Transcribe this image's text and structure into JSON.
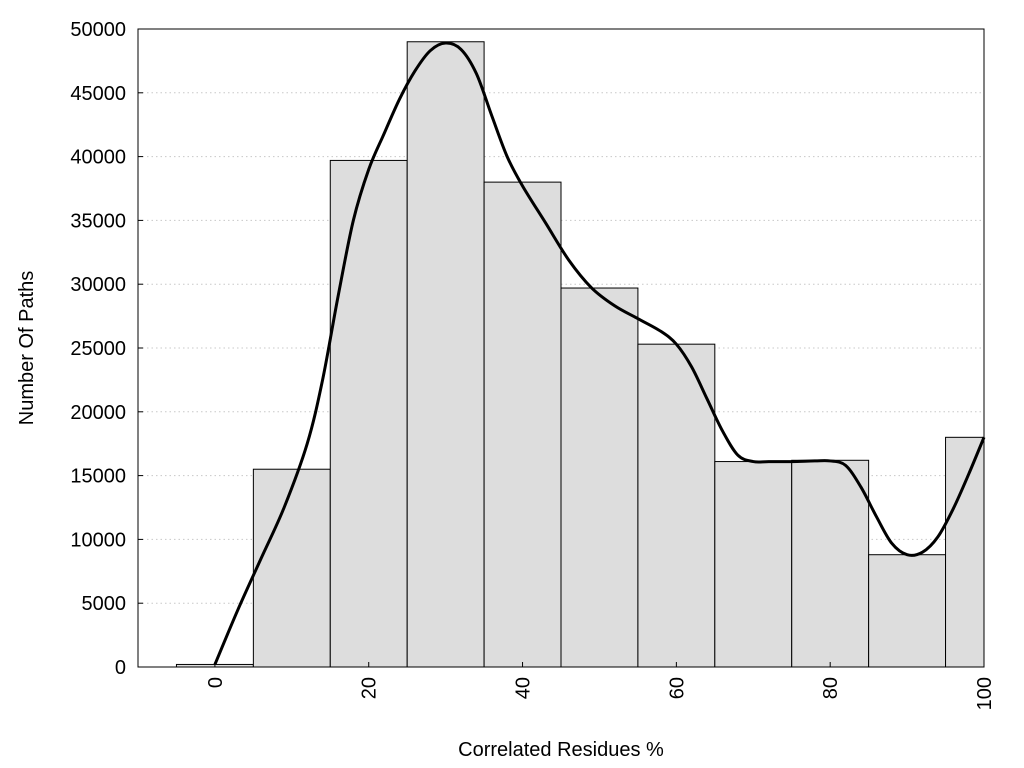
{
  "chart_data": {
    "type": "bar",
    "bar_width": 10,
    "bars": [
      {
        "x": 0,
        "value": 200
      },
      {
        "x": 10,
        "value": 15500
      },
      {
        "x": 20,
        "value": 39700
      },
      {
        "x": 30,
        "value": 49000
      },
      {
        "x": 40,
        "value": 38000
      },
      {
        "x": 50,
        "value": 29700
      },
      {
        "x": 60,
        "value": 25300
      },
      {
        "x": 70,
        "value": 16100
      },
      {
        "x": 80,
        "value": 16200
      },
      {
        "x": 90,
        "value": 8800
      },
      {
        "x": 100,
        "value": 18000
      }
    ],
    "curve": {
      "type": "line",
      "x": [
        0,
        3,
        6,
        9,
        12,
        14,
        16,
        18,
        20,
        22,
        24,
        26,
        28,
        30,
        32,
        34,
        36,
        38,
        40,
        43,
        46,
        49,
        52,
        55,
        58,
        60,
        62,
        64,
        66,
        68,
        70,
        72,
        75,
        78,
        80,
        82,
        84,
        86,
        88,
        90,
        92,
        94,
        96,
        98,
        100
      ],
      "y": [
        200,
        4500,
        8500,
        12500,
        17500,
        22500,
        29000,
        35000,
        39000,
        41800,
        44500,
        46700,
        48300,
        48900,
        48400,
        46500,
        43200,
        40000,
        37700,
        34800,
        31900,
        29700,
        28300,
        27300,
        26300,
        25300,
        23500,
        21000,
        18500,
        16600,
        16100,
        16100,
        16100,
        16150,
        16150,
        15800,
        14100,
        11800,
        9700,
        8800,
        9000,
        10200,
        12400,
        15100,
        18000
      ]
    },
    "xlabel": "Correlated Residues %",
    "ylabel": "Number Of Paths",
    "xlim": [
      -10,
      100
    ],
    "ylim": [
      0,
      50000
    ],
    "x_ticks": [
      0,
      20,
      40,
      60,
      80,
      100
    ],
    "y_ticks": [
      0,
      5000,
      10000,
      15000,
      20000,
      25000,
      30000,
      35000,
      40000,
      45000,
      50000
    ],
    "grid": "horizontal dotted",
    "bar_color": "#dddddd",
    "line_color": "#000000"
  }
}
